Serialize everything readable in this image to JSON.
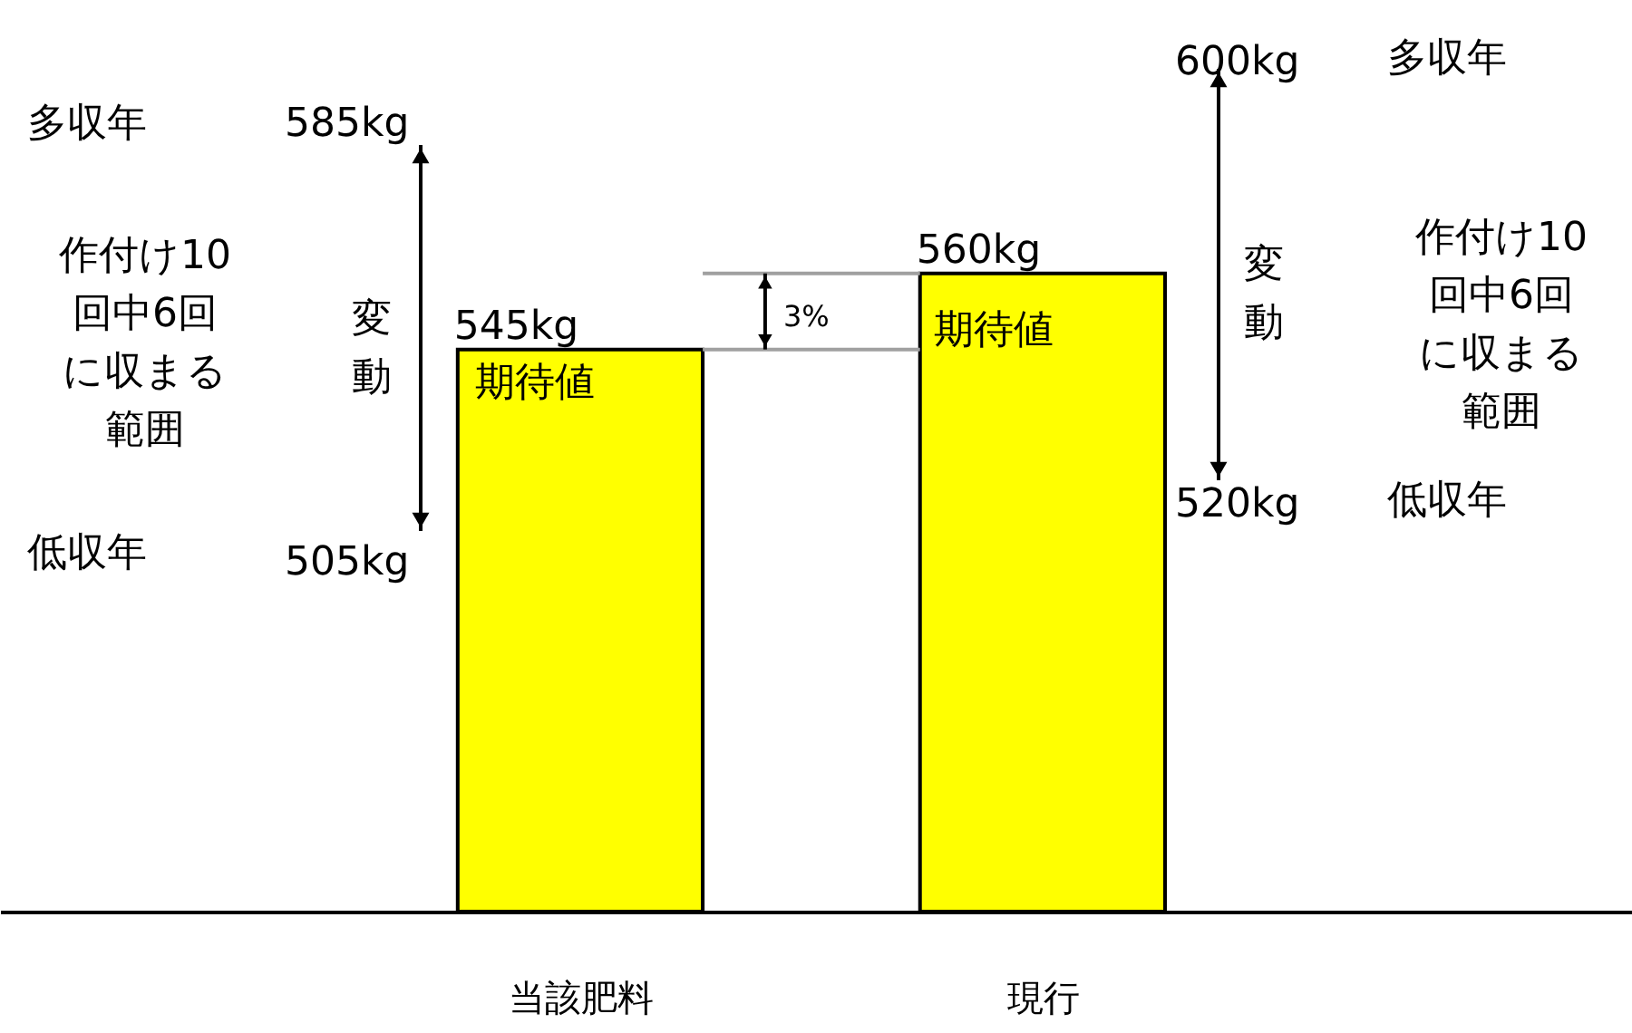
{
  "chart_data": {
    "type": "bar",
    "categories": [
      "当該肥料",
      "現行"
    ],
    "values": [
      545,
      560
    ],
    "colors": [
      "#ffff00",
      "#ffff00"
    ],
    "value_labels": [
      "545kg",
      "560kg"
    ],
    "ylim": [
      434,
      614
    ],
    "annotations": [
      "多収年",
      "585kg",
      "低収年",
      "505kg",
      "期待値",
      "期待値",
      "600kg",
      "多収年",
      "520kg",
      "低収年",
      "変動",
      "変動",
      "作付け10回中6回に収まる範囲",
      "作付け10回中6回に収まる範囲",
      "3%"
    ]
  }
}
